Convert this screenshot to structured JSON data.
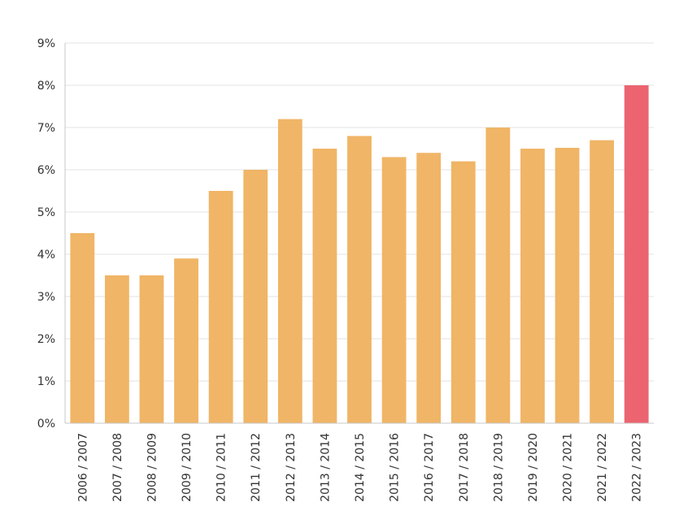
{
  "chart_data": {
    "type": "bar",
    "title": "",
    "xlabel": "",
    "ylabel": "",
    "ylim": [
      0,
      9
    ],
    "y_ticks": [
      "0%",
      "1%",
      "2%",
      "3%",
      "4%",
      "5%",
      "6%",
      "7%",
      "8%",
      "9%"
    ],
    "grid": true,
    "categories": [
      "2006 / 2007",
      "2007 / 2008",
      "2008 / 2009",
      "2009 / 2010",
      "2010 / 2011",
      "2011 / 2012",
      "2012 / 2013",
      "2013 / 2014",
      "2014 / 2015",
      "2015 / 2016",
      "2016 / 2017",
      "2017 / 2018",
      "2018 / 2019",
      "2019 / 2020",
      "2020 / 2021",
      "2021 / 2022",
      "2022 / 2023"
    ],
    "values": [
      4.5,
      3.5,
      3.5,
      3.9,
      5.5,
      6.0,
      7.2,
      6.5,
      6.8,
      6.3,
      6.4,
      6.2,
      7.0,
      6.5,
      6.52,
      6.7,
      8.0
    ],
    "colors": {
      "default": "#f0b566",
      "highlight": "#eb6470",
      "highlight_category": "2022 / 2023"
    }
  }
}
